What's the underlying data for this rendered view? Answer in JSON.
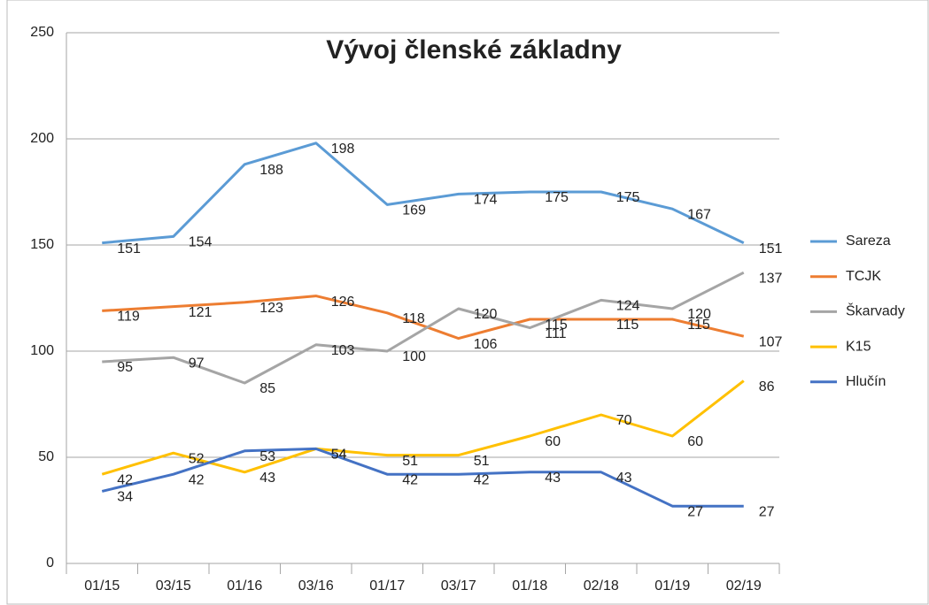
{
  "chart_data": {
    "type": "line",
    "title": "Vývoj členské základny",
    "categories": [
      "01/15",
      "03/15",
      "01/16",
      "03/16",
      "01/17",
      "03/17",
      "01/18",
      "02/18",
      "01/19",
      "02/19"
    ],
    "series": [
      {
        "name": "Sareza",
        "color": "#5b9bd5",
        "values": [
          151,
          154,
          188,
          198,
          169,
          174,
          175,
          175,
          167,
          151
        ]
      },
      {
        "name": "TCJK",
        "color": "#ed7d31",
        "values": [
          119,
          121,
          123,
          126,
          118,
          106,
          115,
          115,
          115,
          107
        ]
      },
      {
        "name": "Škarvady",
        "color": "#a5a5a5",
        "values": [
          95,
          97,
          85,
          103,
          100,
          120,
          111,
          124,
          120,
          137
        ]
      },
      {
        "name": "K15",
        "color": "#ffc000",
        "values": [
          42,
          52,
          43,
          54,
          51,
          51,
          60,
          70,
          60,
          86
        ]
      },
      {
        "name": "Hlučín",
        "color": "#4472c4",
        "values": [
          34,
          42,
          53,
          54,
          42,
          42,
          43,
          43,
          27,
          27
        ]
      }
    ],
    "ylim": [
      0,
      250
    ],
    "yticks": [
      0,
      50,
      100,
      150,
      200,
      250
    ],
    "grid": true,
    "legend": "right",
    "data_labels": true
  }
}
